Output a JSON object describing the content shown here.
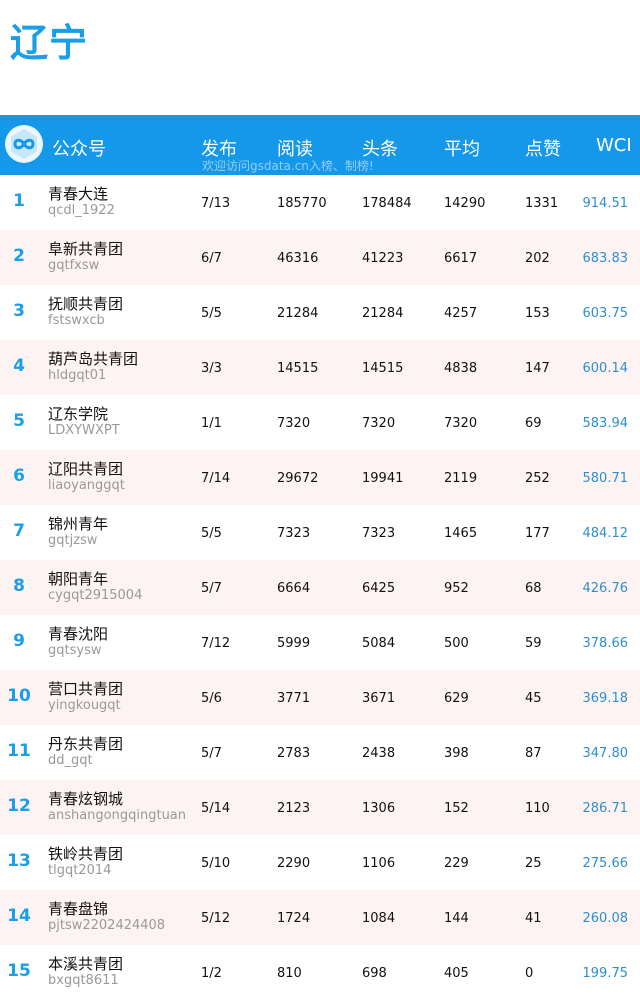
{
  "page": {
    "title": "辽宁"
  },
  "header": {
    "cols": [
      "公众号",
      "发布",
      "阅读",
      "头条",
      "平均",
      "点赞",
      "WCI"
    ],
    "watermark": "欢迎访问gsdata.cn入榜、制榜!",
    "logo_icon": "infinity-logo-icon",
    "accent_color": "#1597ea"
  },
  "rows": [
    {
      "rank": "1",
      "name": "青春大连",
      "account": "qcdl_1922",
      "publish": "7/13",
      "reads": "185770",
      "top": "178484",
      "avg": "14290",
      "likes": "1331",
      "wci": "914.51"
    },
    {
      "rank": "2",
      "name": "阜新共青团",
      "account": "gqtfxsw",
      "publish": "6/7",
      "reads": "46316",
      "top": "41223",
      "avg": "6617",
      "likes": "202",
      "wci": "683.83"
    },
    {
      "rank": "3",
      "name": "抚顺共青团",
      "account": "fstswxcb",
      "publish": "5/5",
      "reads": "21284",
      "top": "21284",
      "avg": "4257",
      "likes": "153",
      "wci": "603.75"
    },
    {
      "rank": "4",
      "name": "葫芦岛共青团",
      "account": "hldgqt01",
      "publish": "3/3",
      "reads": "14515",
      "top": "14515",
      "avg": "4838",
      "likes": "147",
      "wci": "600.14"
    },
    {
      "rank": "5",
      "name": "辽东学院",
      "account": "LDXYWXPT",
      "publish": "1/1",
      "reads": "7320",
      "top": "7320",
      "avg": "7320",
      "likes": "69",
      "wci": "583.94"
    },
    {
      "rank": "6",
      "name": "辽阳共青团",
      "account": "liaoyanggqt",
      "publish": "7/14",
      "reads": "29672",
      "top": "19941",
      "avg": "2119",
      "likes": "252",
      "wci": "580.71"
    },
    {
      "rank": "7",
      "name": "锦州青年",
      "account": "gqtjzsw",
      "publish": "5/5",
      "reads": "7323",
      "top": "7323",
      "avg": "1465",
      "likes": "177",
      "wci": "484.12"
    },
    {
      "rank": "8",
      "name": "朝阳青年",
      "account": "cygqt2915004",
      "publish": "5/7",
      "reads": "6664",
      "top": "6425",
      "avg": "952",
      "likes": "68",
      "wci": "426.76"
    },
    {
      "rank": "9",
      "name": "青春沈阳",
      "account": "gqtsysw",
      "publish": "7/12",
      "reads": "5999",
      "top": "5084",
      "avg": "500",
      "likes": "59",
      "wci": "378.66"
    },
    {
      "rank": "10",
      "name": "营口共青团",
      "account": "yingkougqt",
      "publish": "5/6",
      "reads": "3771",
      "top": "3671",
      "avg": "629",
      "likes": "45",
      "wci": "369.18"
    },
    {
      "rank": "11",
      "name": "丹东共青团",
      "account": "dd_gqt",
      "publish": "5/7",
      "reads": "2783",
      "top": "2438",
      "avg": "398",
      "likes": "87",
      "wci": "347.80"
    },
    {
      "rank": "12",
      "name": "青春炫钢城",
      "account": "anshangongqingtuan",
      "publish": "5/14",
      "reads": "2123",
      "top": "1306",
      "avg": "152",
      "likes": "110",
      "wci": "286.71"
    },
    {
      "rank": "13",
      "name": "铁岭共青团",
      "account": "tlgqt2014",
      "publish": "5/10",
      "reads": "2290",
      "top": "1106",
      "avg": "229",
      "likes": "25",
      "wci": "275.66"
    },
    {
      "rank": "14",
      "name": "青春盘锦",
      "account": "pjtsw2202424408",
      "publish": "5/12",
      "reads": "1724",
      "top": "1084",
      "avg": "144",
      "likes": "41",
      "wci": "260.08"
    },
    {
      "rank": "15",
      "name": "本溪共青团",
      "account": "bxgqt8611",
      "publish": "1/2",
      "reads": "810",
      "top": "698",
      "avg": "405",
      "likes": "0",
      "wci": "199.75"
    }
  ]
}
